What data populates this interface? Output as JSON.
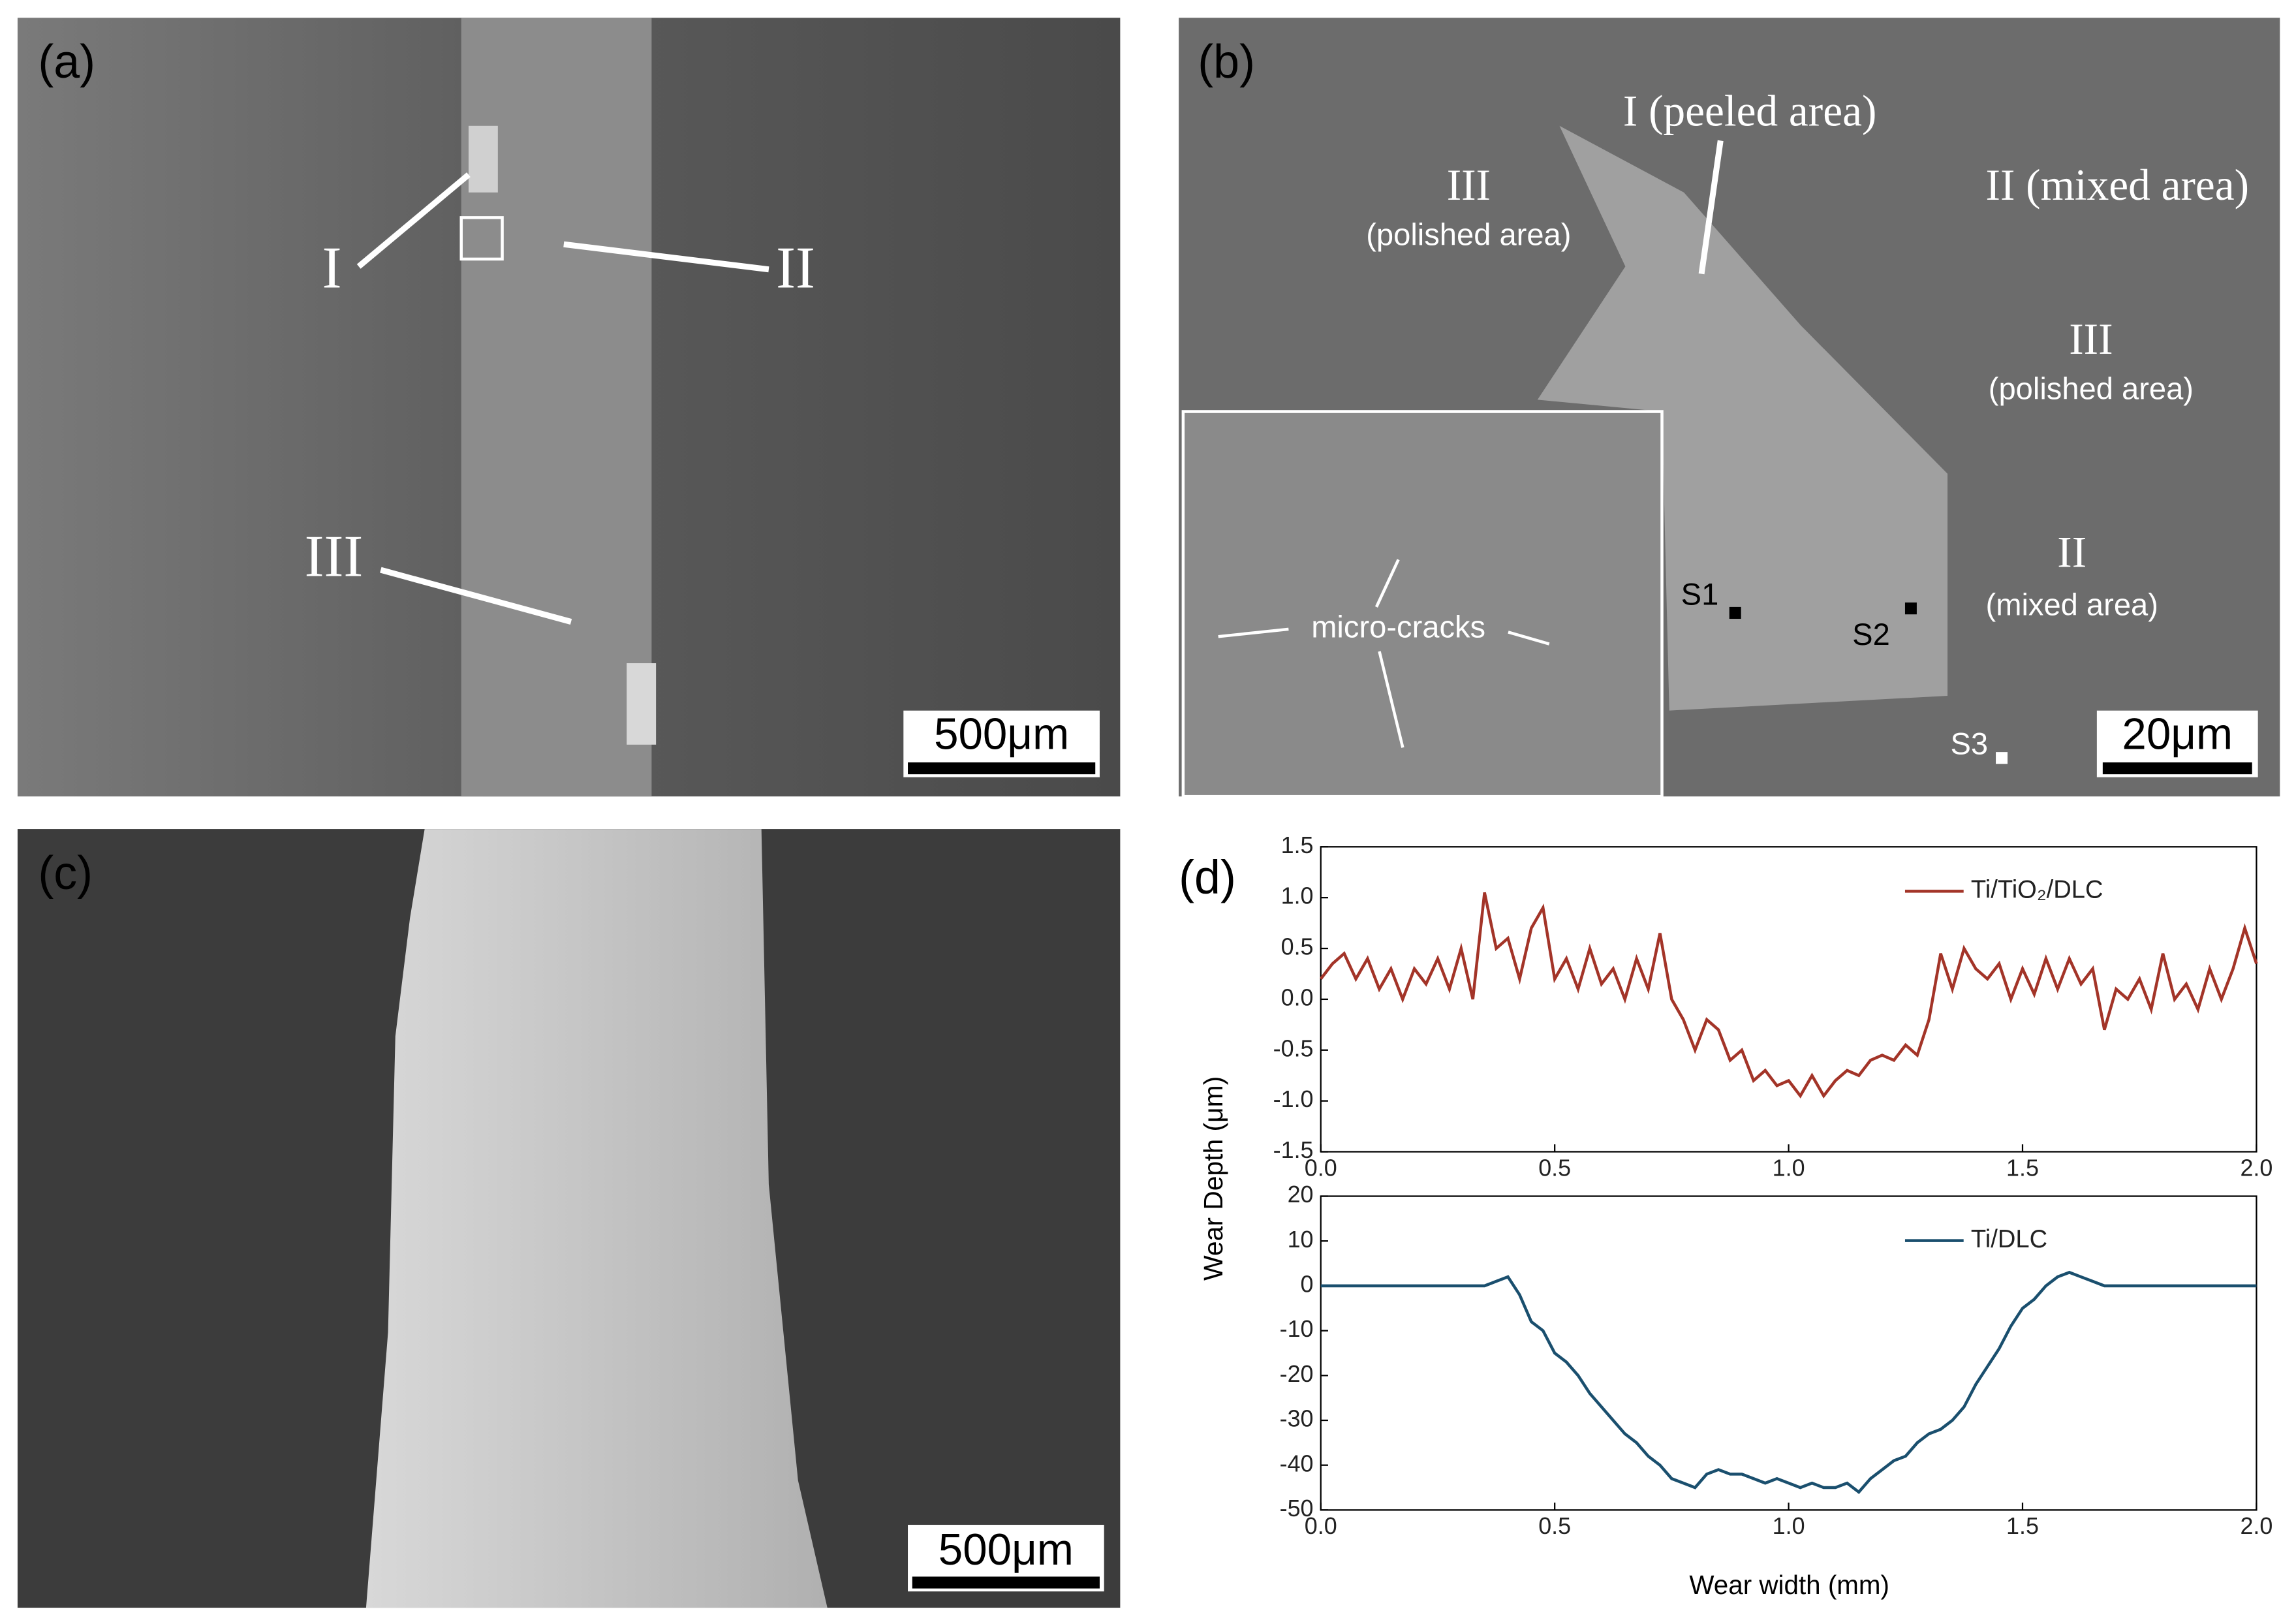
{
  "panels": {
    "a": {
      "label": "(a)",
      "I": "I",
      "II": "II",
      "III": "III",
      "scale": "500μm"
    },
    "b": {
      "label": "(b)",
      "peeled": "I (peeled area)",
      "polished1_num": "III",
      "polished1": "(polished area)",
      "mixed1": "II (mixed area)",
      "polished2_num": "III",
      "polished2": "(polished area)",
      "mixed2_num": "II",
      "mixed2": "(mixed area)",
      "cracks": "micro-cracks",
      "s1": "S1",
      "s2": "S2",
      "s3": "S3",
      "scale": "20μm"
    },
    "c": {
      "label": "(c)",
      "scale": "500μm"
    },
    "d": {
      "label": "(d)"
    }
  },
  "chart_data": [
    {
      "type": "line",
      "ylabel": "Wear Depth (μm)",
      "legend": "upper right",
      "x": [
        0,
        0.025,
        0.05,
        0.075,
        0.1,
        0.125,
        0.15,
        0.175,
        0.2,
        0.225,
        0.25,
        0.275,
        0.3,
        0.325,
        0.35,
        0.375,
        0.4,
        0.425,
        0.45,
        0.475,
        0.5,
        0.525,
        0.55,
        0.575,
        0.6,
        0.625,
        0.65,
        0.675,
        0.7,
        0.725,
        0.75,
        0.775,
        0.8,
        0.825,
        0.85,
        0.875,
        0.9,
        0.925,
        0.95,
        0.975,
        1.0,
        1.025,
        1.05,
        1.075,
        1.1,
        1.125,
        1.15,
        1.175,
        1.2,
        1.225,
        1.25,
        1.275,
        1.3,
        1.325,
        1.35,
        1.375,
        1.4,
        1.425,
        1.45,
        1.475,
        1.5,
        1.525,
        1.55,
        1.575,
        1.6,
        1.625,
        1.65,
        1.675,
        1.7,
        1.725,
        1.75,
        1.775,
        1.8,
        1.825,
        1.85,
        1.875,
        1.9,
        1.925,
        1.95,
        1.975,
        2.0
      ],
      "series": [
        {
          "name": "Ti/TiO₂/DLC",
          "color": "#a33428",
          "values": [
            0.2,
            0.35,
            0.45,
            0.2,
            0.4,
            0.1,
            0.3,
            0.0,
            0.3,
            0.15,
            0.4,
            0.1,
            0.5,
            0.0,
            1.05,
            0.5,
            0.6,
            0.2,
            0.7,
            0.9,
            0.2,
            0.4,
            0.1,
            0.5,
            0.15,
            0.3,
            0.0,
            0.4,
            0.1,
            0.65,
            0.0,
            -0.2,
            -0.5,
            -0.2,
            -0.3,
            -0.6,
            -0.5,
            -0.8,
            -0.7,
            -0.85,
            -0.8,
            -0.95,
            -0.75,
            -0.95,
            -0.8,
            -0.7,
            -0.75,
            -0.6,
            -0.55,
            -0.6,
            -0.45,
            -0.55,
            -0.2,
            0.45,
            0.1,
            0.5,
            0.3,
            0.2,
            0.35,
            0.0,
            0.3,
            0.05,
            0.4,
            0.1,
            0.4,
            0.15,
            0.3,
            -0.3,
            0.1,
            0.0,
            0.2,
            -0.1,
            0.45,
            0.0,
            0.15,
            -0.1,
            0.3,
            0.0,
            0.3,
            0.7,
            0.35
          ]
        }
      ],
      "xlim": [
        0,
        2
      ],
      "xticks": [
        {
          "value": 0,
          "label": "0.0"
        },
        0.5,
        {
          "value": 1,
          "label": "1.0"
        },
        1.5,
        {
          "value": 2,
          "label": "2.0"
        }
      ],
      "ylim": [
        -1.5,
        1.5
      ],
      "yticks": [
        -1.5,
        {
          "value": -1,
          "label": "-1.0"
        },
        -0.5,
        {
          "value": 0,
          "label": "0.0"
        },
        0.5,
        {
          "value": 1,
          "label": "1.0"
        },
        1.5
      ]
    },
    {
      "type": "line",
      "xlabel": "Wear width (mm)",
      "legend": "upper right",
      "x": [
        0,
        0.025,
        0.05,
        0.075,
        0.1,
        0.125,
        0.15,
        0.175,
        0.2,
        0.225,
        0.25,
        0.275,
        0.3,
        0.325,
        0.35,
        0.375,
        0.4,
        0.425,
        0.45,
        0.475,
        0.5,
        0.525,
        0.55,
        0.575,
        0.6,
        0.625,
        0.65,
        0.675,
        0.7,
        0.725,
        0.75,
        0.775,
        0.8,
        0.825,
        0.85,
        0.875,
        0.9,
        0.925,
        0.95,
        0.975,
        1.0,
        1.025,
        1.05,
        1.075,
        1.1,
        1.125,
        1.15,
        1.175,
        1.2,
        1.225,
        1.25,
        1.275,
        1.3,
        1.325,
        1.35,
        1.375,
        1.4,
        1.425,
        1.45,
        1.475,
        1.5,
        1.525,
        1.55,
        1.575,
        1.6,
        1.625,
        1.65,
        1.675,
        1.7,
        1.725,
        1.75,
        1.775,
        1.8,
        1.825,
        1.85,
        1.875,
        1.9,
        1.925,
        1.95,
        1.975,
        2.0
      ],
      "series": [
        {
          "name": "Ti/DLC",
          "color": "#1a4f6e",
          "values": [
            0,
            0,
            0,
            0,
            0,
            0,
            0,
            0,
            0,
            0,
            0,
            0,
            0,
            0,
            0,
            1,
            2,
            -2,
            -8,
            -10,
            -15,
            -17,
            -20,
            -24,
            -27,
            -30,
            -33,
            -35,
            -38,
            -40,
            -43,
            -44,
            -45,
            -42,
            -41,
            -42,
            -42,
            -43,
            -44,
            -43,
            -44,
            -45,
            -44,
            -45,
            -45,
            -44,
            -46,
            -43,
            -41,
            -39,
            -38,
            -35,
            -33,
            -32,
            -30,
            -27,
            -22,
            -18,
            -14,
            -9,
            -5,
            -3,
            0,
            2,
            3,
            2,
            1,
            0,
            0,
            0,
            0,
            0,
            0,
            0,
            0,
            0,
            0,
            0,
            0,
            0,
            0
          ]
        }
      ],
      "xlim": [
        0,
        2
      ],
      "xticks": [
        {
          "value": 0,
          "label": "0.0"
        },
        0.5,
        {
          "value": 1,
          "label": "1.0"
        },
        1.5,
        {
          "value": 2,
          "label": "2.0"
        }
      ],
      "ylim": [
        -50,
        20
      ],
      "yticks": [
        -50,
        -40,
        -30,
        -20,
        -10,
        0,
        10,
        20
      ]
    }
  ]
}
